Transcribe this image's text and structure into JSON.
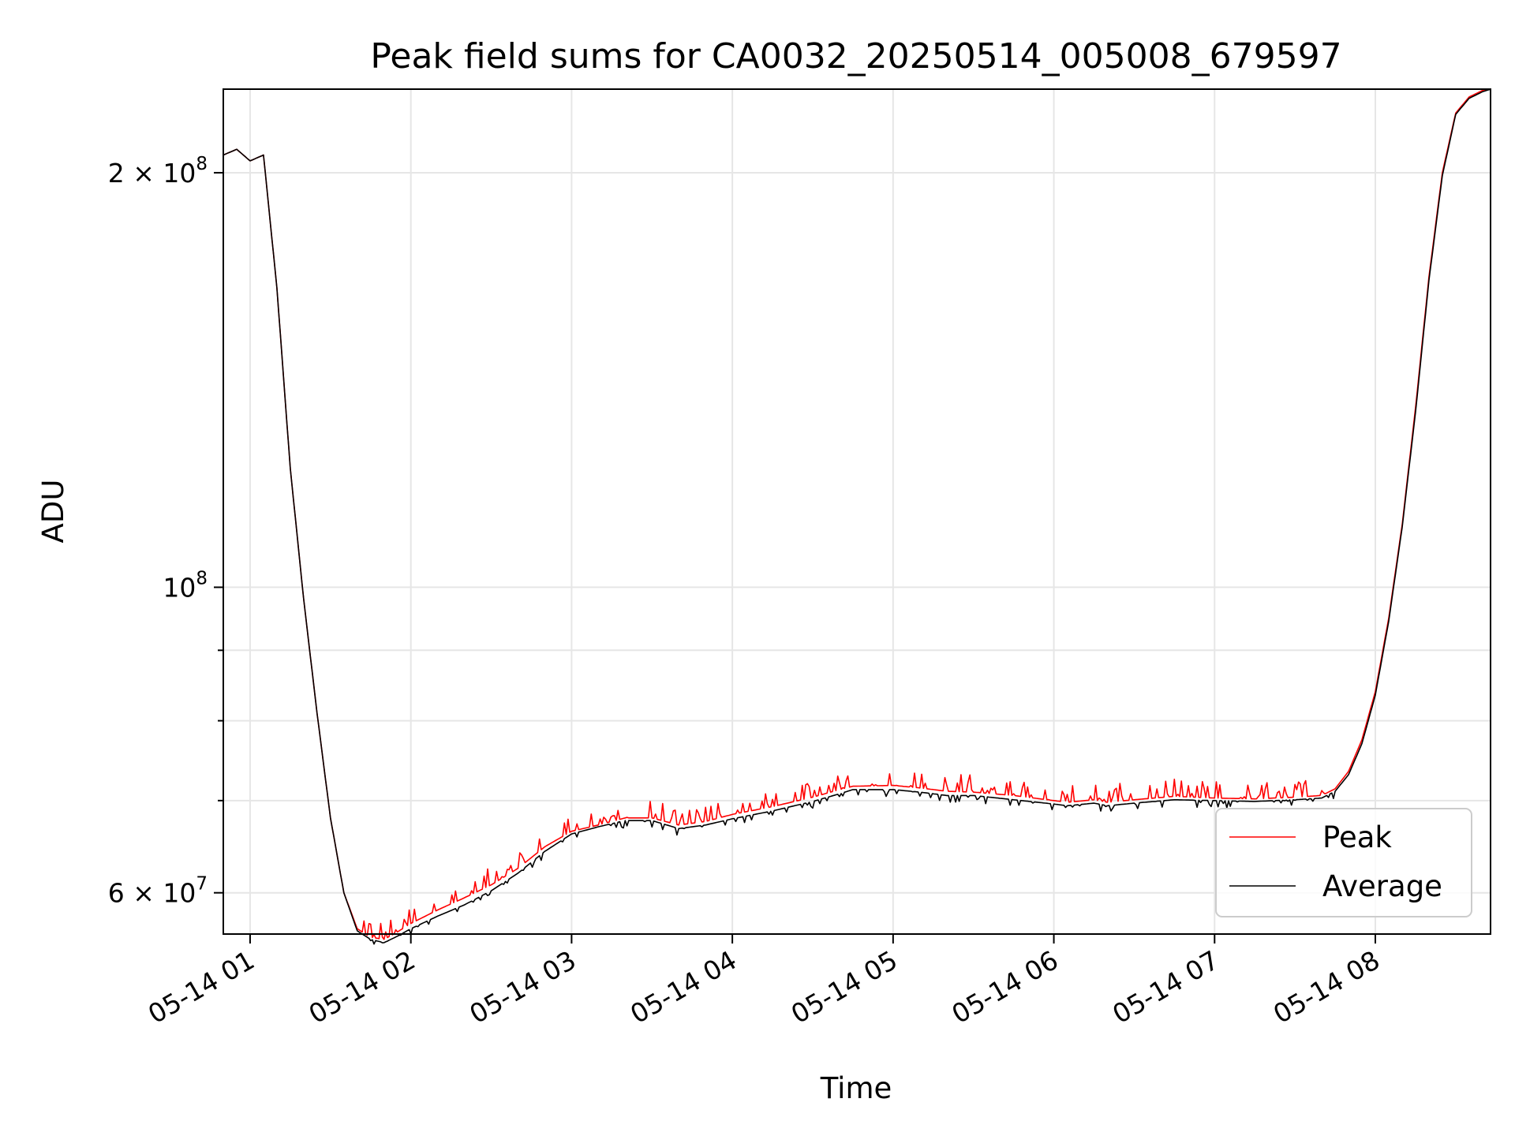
{
  "chart_data": {
    "type": "line",
    "title": "Peak field sums for CA0032_20250514_005008_679597",
    "xlabel": "Time",
    "ylabel": "ADU",
    "yscale": "log",
    "ylim": [
      56000000,
      230000000
    ],
    "xlim": [
      "05-14 00:50",
      "05-14 08:43"
    ],
    "x_ticks": [
      "05-14 01",
      "05-14 02",
      "05-14 03",
      "05-14 04",
      "05-14 05",
      "05-14 06",
      "05-14 07",
      "05-14 08"
    ],
    "y_ticks": [
      {
        "value": 60000000,
        "base": "6 × 10",
        "exp": "7"
      },
      {
        "value": 100000000,
        "base": "10",
        "exp": "8"
      },
      {
        "value": 200000000,
        "base": "2 × 10",
        "exp": "8"
      }
    ],
    "grid": true,
    "legend_position": "lower-right",
    "x": [
      "05-14 00:50",
      "05-14 00:55",
      "05-14 01:00",
      "05-14 01:05",
      "05-14 01:10",
      "05-14 01:15",
      "05-14 01:20",
      "05-14 01:25",
      "05-14 01:30",
      "05-14 01:35",
      "05-14 01:40",
      "05-14 01:45",
      "05-14 01:50",
      "05-14 01:55",
      "05-14 02:00",
      "05-14 02:10",
      "05-14 02:20",
      "05-14 02:30",
      "05-14 02:40",
      "05-14 02:50",
      "05-14 03:00",
      "05-14 03:10",
      "05-14 03:20",
      "05-14 03:30",
      "05-14 03:40",
      "05-14 03:50",
      "05-14 04:00",
      "05-14 04:15",
      "05-14 04:30",
      "05-14 04:40",
      "05-14 04:45",
      "05-14 05:00",
      "05-14 05:10",
      "05-14 05:20",
      "05-14 05:30",
      "05-14 05:45",
      "05-14 06:00",
      "05-14 06:05",
      "05-14 06:15",
      "05-14 06:20",
      "05-14 06:30",
      "05-14 06:45",
      "05-14 07:00",
      "05-14 07:15",
      "05-14 07:30",
      "05-14 07:40",
      "05-14 07:45",
      "05-14 07:50",
      "05-14 07:55",
      "05-14 08:00",
      "05-14 08:05",
      "05-14 08:10",
      "05-14 08:15",
      "05-14 08:20",
      "05-14 08:25",
      "05-14 08:30",
      "05-14 08:35",
      "05-14 08:40",
      "05-14 08:43"
    ],
    "series": [
      {
        "name": "Peak",
        "color": "#ff0000",
        "values": [
          206000000,
          208000000,
          204000000,
          206000000,
          165000000,
          122000000,
          98000000,
          81000000,
          68000000,
          60000000,
          56500000,
          55700000,
          55500000,
          56200000,
          57000000,
          58300000,
          59500000,
          60800000,
          62500000,
          64800000,
          66500000,
          67200000,
          68000000,
          68000000,
          67200000,
          67600000,
          68400000,
          69300000,
          70400000,
          71300000,
          71700000,
          71800000,
          71500000,
          71100000,
          71000000,
          70600000,
          70000000,
          69800000,
          70100000,
          69800000,
          70100000,
          70500000,
          70300000,
          70200000,
          70400000,
          70600000,
          71400000,
          73500000,
          77500000,
          84000000,
          95000000,
          111000000,
          135000000,
          168000000,
          200000000,
          221000000,
          227000000,
          229500000,
          230000000
        ]
      },
      {
        "name": "Average",
        "color": "#000000",
        "values": [
          206000000,
          208000000,
          204000000,
          206000000,
          165000000,
          122000000,
          98000000,
          81000000,
          68000000,
          60000000,
          56300000,
          55500000,
          55200000,
          55800000,
          56500000,
          57700000,
          58800000,
          60200000,
          62000000,
          64300000,
          66200000,
          67000000,
          67700000,
          67700000,
          66800000,
          67200000,
          67900000,
          68800000,
          69900000,
          70800000,
          71300000,
          71300000,
          71000000,
          70600000,
          70600000,
          70100000,
          69600000,
          69400000,
          69700000,
          69400000,
          69700000,
          70100000,
          70000000,
          69900000,
          70100000,
          70300000,
          71100000,
          73100000,
          77000000,
          83500000,
          94500000,
          110500000,
          134000000,
          167000000,
          199000000,
          220500000,
          226500000,
          229000000,
          230000000
        ]
      }
    ]
  }
}
